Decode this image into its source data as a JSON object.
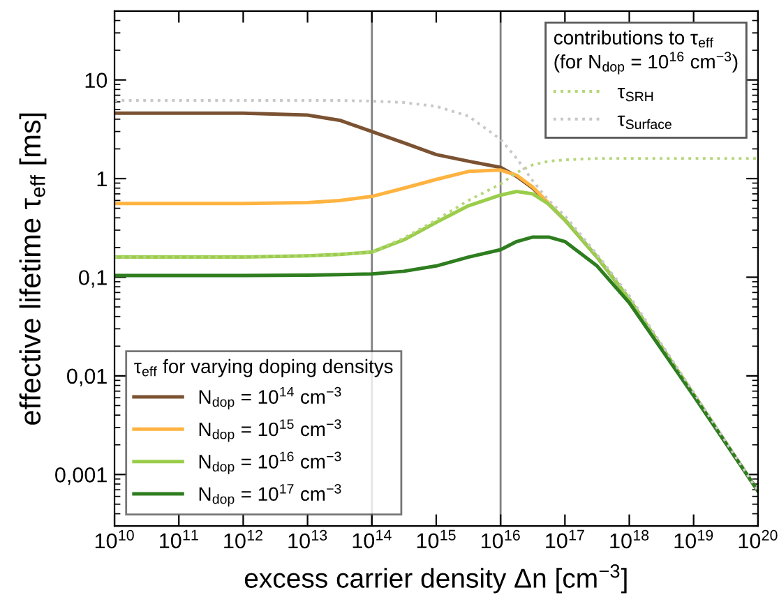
{
  "chart_data": {
    "type": "line",
    "xlabel": "excess carrier density Δn [cm$^{−3}$]",
    "ylabel": "effective lifetime τ$_{eff}$ [ms]",
    "legend_title": [
      "τ$_{eff}$ for varying doping densitys",
      "contributions to τ$_{eff}$\n(for N$_{dop}$ = 10$^{16}$ cm$^{−3}$)"
    ],
    "legend": [
      "bottom left",
      "top right"
    ],
    "log": "xy",
    "grid": false,
    "x": [
      10000000000.0,
      100000000000.0,
      1000000000000.0,
      10000000000000.0,
      31600000000000.0,
      100000000000000.0,
      316000000000000.0,
      1000000000000000.0,
      3160000000000000.0,
      1e+16,
      1.78e+16,
      3.16e+16,
      5.62e+16,
      1e+17,
      3.16e+17,
      1e+18,
      1e+19,
      1e+20
    ],
    "series": [
      {
        "name": "N$_{dop}$ = 10$^{14}$ cm$^{−3}$",
        "color": "#7b5232",
        "line_style": "solid",
        "values": [
          4.6,
          4.6,
          4.6,
          4.4,
          3.9,
          3.0,
          2.3,
          1.75,
          1.5,
          1.3,
          1.05,
          0.8,
          0.55,
          0.38,
          0.16,
          0.06,
          0.0065,
          0.00068
        ]
      },
      {
        "name": "N$_{dop}$ = 10$^{15}$ cm$^{−3}$",
        "color": "#ffb340",
        "line_style": "solid",
        "values": [
          0.56,
          0.56,
          0.56,
          0.57,
          0.6,
          0.66,
          0.8,
          0.98,
          1.18,
          1.22,
          1.08,
          0.82,
          0.56,
          0.38,
          null,
          null,
          null,
          null
        ]
      },
      {
        "name": "N$_{dop}$ = 10$^{16}$ cm$^{−3}$",
        "color": "#9acd4a",
        "line_style": "solid",
        "values": [
          0.16,
          0.16,
          0.16,
          0.165,
          0.17,
          0.18,
          0.24,
          0.36,
          0.53,
          0.68,
          0.74,
          0.7,
          0.55,
          0.38,
          0.16,
          0.06,
          0.0065,
          0.00068
        ]
      },
      {
        "name": "N$_{dop}$ = 10$^{17}$ cm$^{−3}$",
        "color": "#2e7d1f",
        "line_style": "solid",
        "values": [
          0.104,
          0.104,
          0.104,
          0.105,
          0.106,
          0.108,
          0.115,
          0.13,
          0.16,
          0.19,
          0.23,
          0.255,
          0.255,
          0.23,
          0.13,
          0.055,
          0.0063,
          0.00068
        ]
      },
      {
        "name": "τ$_{SRH}$",
        "color": "#b5d67a",
        "line_style": "dotted",
        "values": [
          0.16,
          0.16,
          0.16,
          0.165,
          0.17,
          0.18,
          0.25,
          0.38,
          0.6,
          0.88,
          1.15,
          1.38,
          1.5,
          1.55,
          1.6,
          1.6,
          1.6,
          1.6
        ]
      },
      {
        "name": "τ$_{Surface}$",
        "color": "#c8c8c8",
        "line_style": "dotted",
        "values": [
          6.2,
          6.2,
          6.2,
          6.2,
          6.2,
          6.1,
          5.9,
          5.4,
          4.3,
          2.5,
          1.6,
          0.95,
          0.6,
          0.42,
          0.17,
          0.065,
          0.0068,
          0.00068
        ]
      }
    ],
    "xlim": [
      10000000000.0,
      1e+20
    ],
    "xticks": [
      {
        "value": 10000000000.0,
        "label": "10$^{10}$"
      },
      {
        "value": 100000000000.0,
        "label": "10$^{11}$"
      },
      {
        "value": 1000000000000.0,
        "label": "10$^{12}$"
      },
      {
        "value": 10000000000000.0,
        "label": "10$^{13}$"
      },
      {
        "value": 100000000000000.0,
        "label": "10$^{14}$"
      },
      {
        "value": 1000000000000000.0,
        "label": "10$^{15}$"
      },
      {
        "value": 1e+16,
        "label": "10$^{16}$"
      },
      {
        "value": 1e+17,
        "label": "10$^{17}$"
      },
      {
        "value": 1e+18,
        "label": "10$^{18}$"
      },
      {
        "value": 1e+19,
        "label": "10$^{19}$"
      },
      {
        "value": 1e+20,
        "label": "10$^{20}$"
      }
    ],
    "ylim": [
      0.0003,
      50
    ],
    "yticks": [
      {
        "value": 0.001,
        "label": "0,001"
      },
      {
        "value": 0.01,
        "label": "0,01"
      },
      {
        "value": 0.1,
        "label": "0,1"
      },
      1,
      10
    ],
    "ref_lines": [
      {
        "axis": "x",
        "value": 100000000000000.0,
        "color": "#808080"
      },
      {
        "axis": "x",
        "value": 1e+16,
        "color": "#808080"
      }
    ]
  }
}
